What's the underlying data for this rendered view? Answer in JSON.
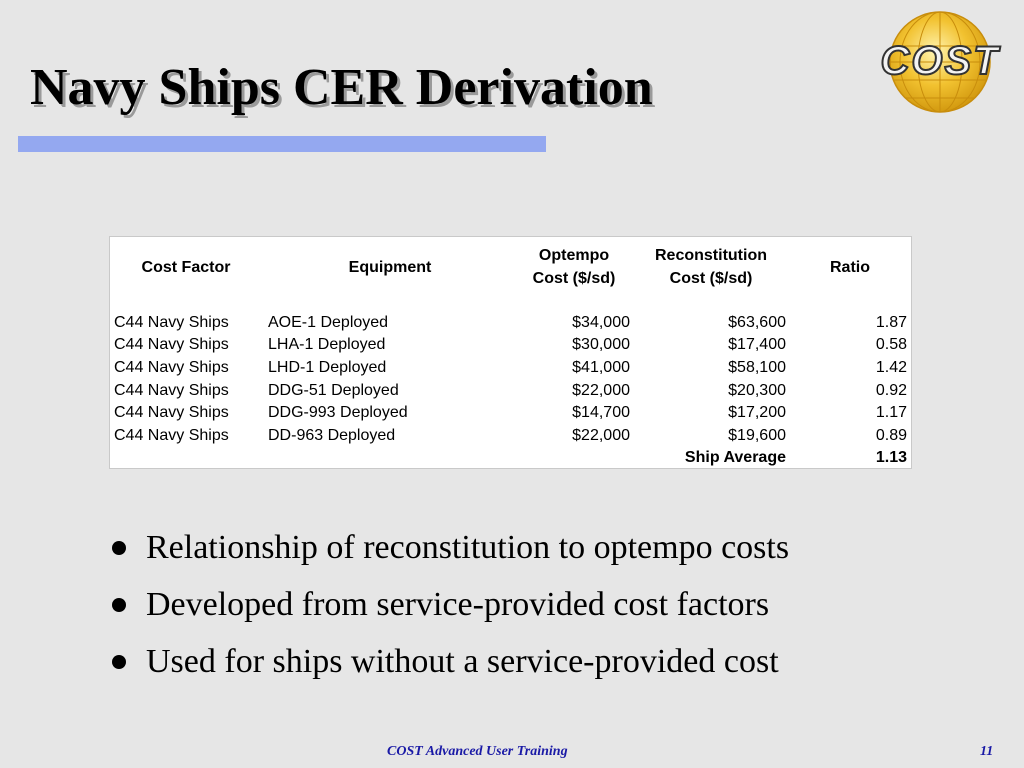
{
  "slide": {
    "title": "Navy Ships CER Derivation",
    "logo_text": "COST"
  },
  "table": {
    "headers": {
      "cost_factor": "Cost Factor",
      "equipment": "Equipment",
      "optempo_line1": "Optempo",
      "optempo_line2": "Cost ($/sd)",
      "recon_line1": "Reconstitution",
      "recon_line2": "Cost ($/sd)",
      "ratio": "Ratio"
    },
    "rows": [
      {
        "cost_factor": "C44 Navy Ships",
        "equipment": "AOE-1 Deployed",
        "optempo": "$34,000",
        "reconstitution": "$63,600",
        "ratio": "1.87"
      },
      {
        "cost_factor": "C44 Navy Ships",
        "equipment": "LHA-1 Deployed",
        "optempo": "$30,000",
        "reconstitution": "$17,400",
        "ratio": "0.58"
      },
      {
        "cost_factor": "C44 Navy Ships",
        "equipment": "LHD-1 Deployed",
        "optempo": "$41,000",
        "reconstitution": "$58,100",
        "ratio": "1.42"
      },
      {
        "cost_factor": "C44 Navy Ships",
        "equipment": "DDG-51 Deployed",
        "optempo": "$22,000",
        "reconstitution": "$20,300",
        "ratio": "0.92"
      },
      {
        "cost_factor": "C44 Navy Ships",
        "equipment": "DDG-993 Deployed",
        "optempo": "$14,700",
        "reconstitution": "$17,200",
        "ratio": "1.17"
      },
      {
        "cost_factor": "C44 Navy Ships",
        "equipment": "DD-963 Deployed",
        "optempo": "$22,000",
        "reconstitution": "$19,600",
        "ratio": "0.89"
      }
    ],
    "summary": {
      "label": "Ship Average",
      "ratio": "1.13"
    }
  },
  "bullets": [
    "Relationship of reconstitution to optempo costs",
    "Developed from service-provided cost factors",
    "Used for ships without a service-provided cost"
  ],
  "footer": {
    "text": "COST Advanced User Training",
    "page_number": "11"
  },
  "colors": {
    "background": "#e6e6e6",
    "title_bar": "#94a8f0",
    "footer_text": "#1a1aa6",
    "logo_gold": "#f2c230"
  }
}
